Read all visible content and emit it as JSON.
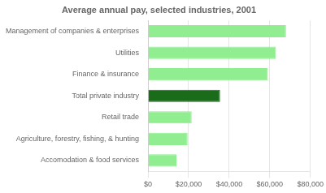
{
  "chart_data": {
    "type": "bar",
    "orientation": "horizontal",
    "title": "Average annual pay, selected industries, 2001",
    "categories": [
      "Accomodation & food services",
      "Agriculture, forestry, fishing, & hunting",
      "Retail trade",
      "Total private industry",
      "Finance & insurance",
      "Utilities",
      "Management of companies & enterprises"
    ],
    "values": [
      14000,
      19500,
      21500,
      35500,
      59000,
      63000,
      68000
    ],
    "colors": [
      "#90EE90",
      "#90EE90",
      "#90EE90",
      "#1a6b1a",
      "#90EE90",
      "#90EE90",
      "#90EE90"
    ],
    "xlim": [
      0,
      80000
    ],
    "xticks": [
      {
        "value": 0,
        "label": "$0"
      },
      {
        "value": 20000,
        "label": "$20,000"
      },
      {
        "value": 40000,
        "label": "$40,000"
      },
      {
        "value": 60000,
        "label": "$60,000"
      },
      {
        "value": 80000,
        "label": "$80,000"
      }
    ],
    "grid": true
  }
}
